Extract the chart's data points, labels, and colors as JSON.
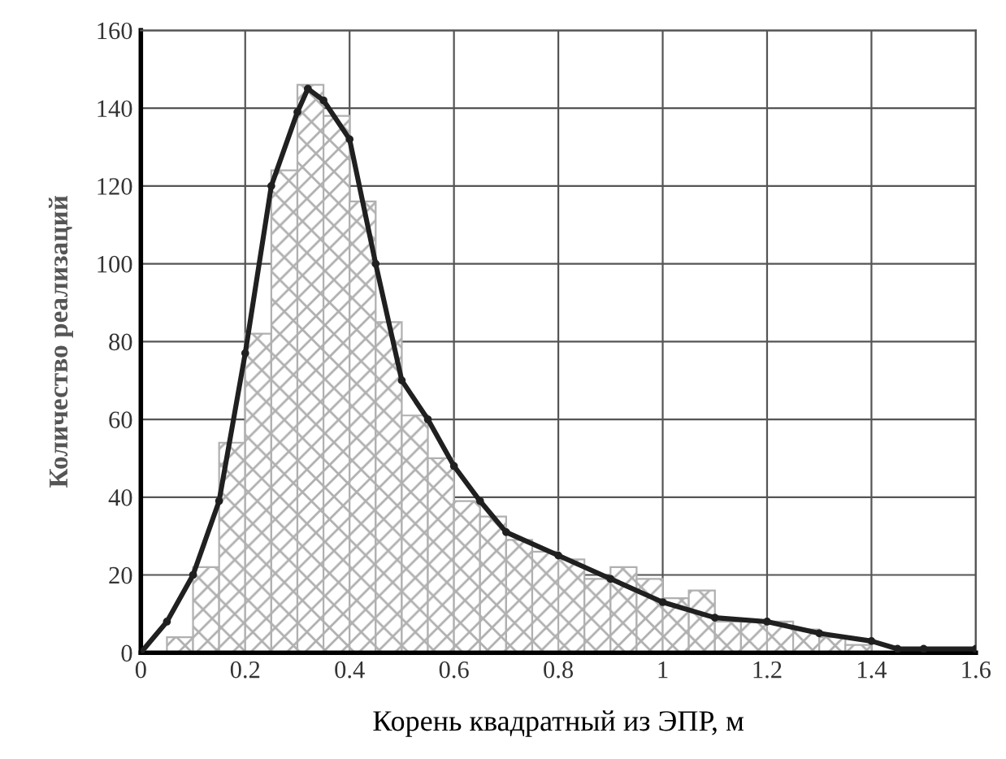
{
  "chart_data": {
    "type": "histogram",
    "xlabel": "Корень квадратный из ЭПР, м",
    "ylabel": "Количество реализаций",
    "xlim": [
      0,
      1.6
    ],
    "ylim": [
      0,
      160
    ],
    "xticks": [
      0,
      0.2,
      0.4,
      0.6,
      0.8,
      1,
      1.2,
      1.4,
      1.6
    ],
    "yticks": [
      0,
      20,
      40,
      60,
      80,
      100,
      120,
      140,
      160
    ],
    "grid": true,
    "series": [
      {
        "color": "#b0b0b0",
        "bins": [
          0,
          0.05,
          0.1,
          0.15,
          0.2,
          0.25,
          0.3,
          0.35,
          0.4,
          0.45,
          0.5,
          0.55,
          0.6,
          0.65,
          0.7,
          0.75,
          0.8,
          0.85,
          0.9,
          0.95,
          1,
          1.05,
          1.1,
          1.15,
          1.2,
          1.25,
          1.3,
          1.35,
          1.4,
          1.45,
          1.5,
          1.55,
          1.6
        ],
        "values": [
          null,
          4,
          22,
          54,
          82,
          124,
          146,
          138,
          116,
          85,
          61,
          50,
          39,
          35,
          29,
          26,
          24,
          19,
          22,
          19,
          14,
          16,
          8,
          8,
          8,
          6,
          4,
          2,
          null,
          null,
          null,
          null
        ]
      },
      {
        "type": "line",
        "color": "#202020",
        "marker": "circle",
        "x": [
          0,
          0.05,
          0.1,
          0.15,
          0.2,
          0.25,
          0.3,
          0.32,
          0.35,
          0.4,
          0.45,
          0.5,
          0.55,
          0.6,
          0.65,
          0.7,
          0.8,
          0.9,
          1,
          1.1,
          1.2,
          1.3,
          1.4,
          1.45,
          1.5,
          1.6
        ],
        "values": [
          0,
          8,
          20,
          39,
          77,
          120,
          139,
          145,
          142,
          132,
          100,
          70,
          60,
          48,
          39,
          31,
          25,
          19,
          13,
          9,
          8,
          5,
          3,
          1,
          1,
          1
        ]
      }
    ]
  }
}
